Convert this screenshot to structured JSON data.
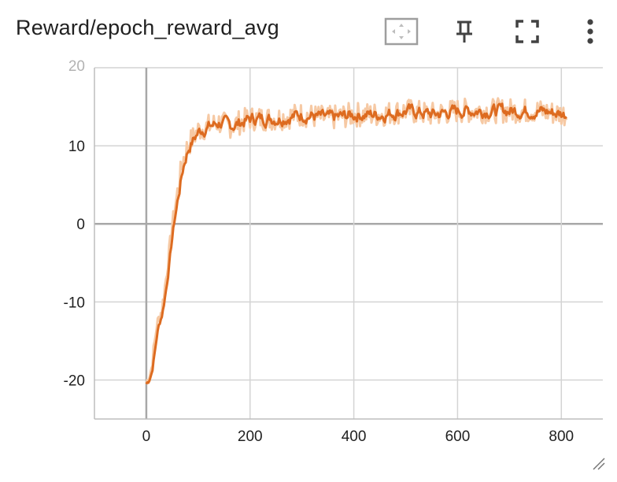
{
  "card": {
    "title": "Reward/epoch_reward_avg",
    "icons": {
      "fit": "fit-domain-icon",
      "pin": "pin-icon",
      "fullscreen": "fullscreen-icon",
      "menu": "more-vert-icon",
      "resize": "resize-handle-icon"
    }
  },
  "chart_data": {
    "type": "line",
    "title": "Reward/epoch_reward_avg",
    "xlabel": "",
    "ylabel": "",
    "xlim": [
      -100,
      880
    ],
    "ylim": [
      -25,
      20
    ],
    "x_ticks": [
      0,
      200,
      400,
      600,
      800
    ],
    "y_ticks": [
      -20,
      -10,
      0,
      10,
      20
    ],
    "x_tick_labels": [
      "0",
      "200",
      "400",
      "600",
      "800"
    ],
    "y_tick_labels": [
      "-20",
      "-10",
      "0",
      "10",
      "20"
    ],
    "grid": true,
    "legend": "none",
    "colors": {
      "smoothed": "#dd6b20",
      "raw": "#f6c9a4",
      "grid": "#d4d4d4",
      "zero_axis": "#a8a8a8"
    },
    "series": [
      {
        "x": [
          0,
          10,
          20,
          30,
          40,
          50,
          60,
          70,
          80,
          100,
          120,
          140,
          160,
          180,
          200,
          250,
          300,
          350,
          400,
          450,
          500,
          550,
          600,
          650,
          700,
          750,
          810
        ],
        "values": [
          -20.5,
          -18.5,
          -13,
          -11,
          -6,
          0,
          4,
          8,
          10,
          12,
          12.5,
          13,
          12.5,
          13,
          13.5,
          13.5,
          14,
          13.5,
          14,
          14,
          14.5,
          14,
          14.5,
          14.5,
          14.5,
          14.5,
          14
        ]
      }
    ]
  }
}
